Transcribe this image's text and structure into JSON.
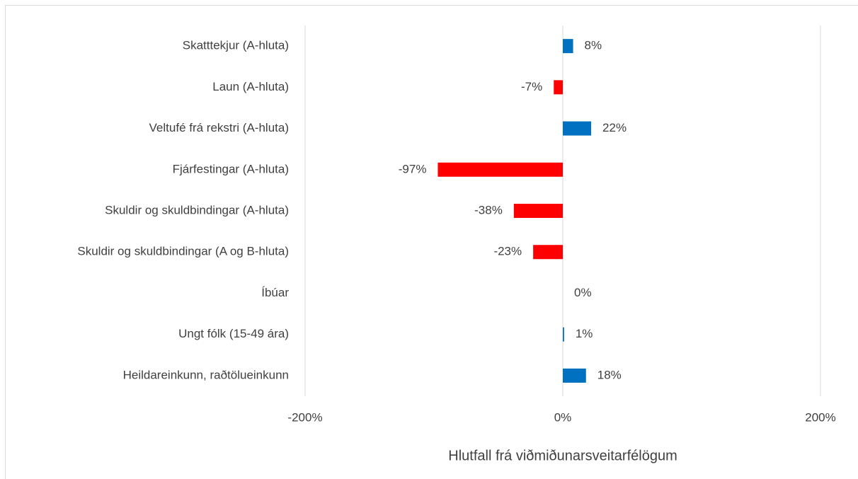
{
  "chart_data": {
    "type": "bar",
    "orientation": "horizontal",
    "categories": [
      "Skatttekjur (A-hluta)",
      "Laun (A-hluta)",
      "Veltufé frá rekstri (A-hluta)",
      "Fjárfestingar (A-hluta)",
      "Skuldir og skuldbindingar (A-hluta)",
      "Skuldir og skuldbindingar (A og B-hluta)",
      "Íbúar",
      "Ungt fólk (15-49 ára)",
      "Heildareinkunn, raðtölueinkunn"
    ],
    "values": [
      8,
      -7,
      22,
      -97,
      -38,
      -23,
      0,
      1,
      18
    ],
    "value_labels": [
      "8%",
      "-7%",
      "22%",
      "-97%",
      "-38%",
      "-23%",
      "0%",
      "1%",
      "18%"
    ],
    "color": "#0070c0",
    "negative_color": "#ff0000",
    "xlim": [
      -200,
      200
    ],
    "xticks": [
      {
        "value": -200,
        "label": "-200%"
      },
      {
        "value": 0,
        "label": "0%"
      },
      {
        "value": 200,
        "label": "200%"
      }
    ],
    "grid": true,
    "x_label": "Hlutfall frá viðmiðunarsveitarfélögum"
  }
}
